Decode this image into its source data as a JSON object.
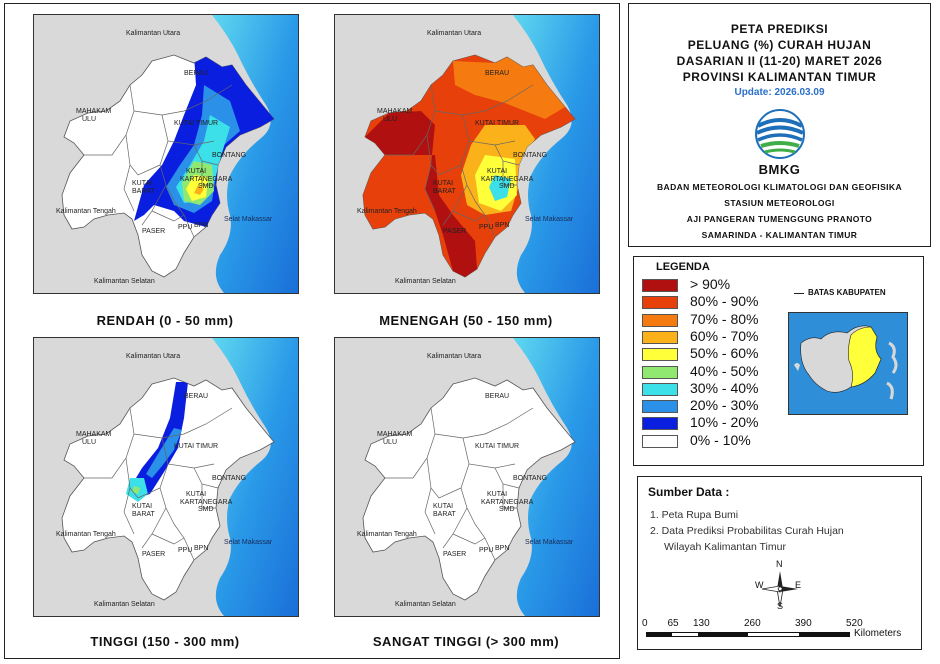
{
  "maps": [
    {
      "caption": "RENDAH (0 - 50 mm)"
    },
    {
      "caption": "MENENGAH (50 - 150 mm)"
    },
    {
      "caption": "TINGGI (150 - 300 mm)"
    },
    {
      "caption": "SANGAT TINGGI (> 300 mm)"
    }
  ],
  "map_labels": {
    "kalimantan_utara": "Kalimantan Utara",
    "berau": "BERAU",
    "mahakam_ulu": "MAHAKAM\nULU",
    "mahakam": "MAHAKAM",
    "ulu": "ULU",
    "kutai_timur": "KUTAI TIMUR",
    "bontang": "BONTANG",
    "kutai": "KUTAI",
    "kartanegara": "KARTANEGARA",
    "barat": "BARAT",
    "smd": "SMD",
    "kalimantan_tengah": "Kalimantan Tengah",
    "selat_makassar": "Selat Makassar",
    "paser": "PASER",
    "ppu": "PPU",
    "bpn": "BPN",
    "kalimantan_selatan": "Kalimantan Selatan"
  },
  "title": {
    "line1": "PETA PREDIKSI",
    "line2": "PELUANG (%) CURAH HUJAN",
    "line3": "DASARIAN II (11-20) MARET 2026",
    "line4": "PROVINSI KALIMANTAN TIMUR",
    "update": "Update: 2026.03.09"
  },
  "logo": {
    "text": "BMKG"
  },
  "org": {
    "line1": "BADAN METEOROLOGI KLIMATOLOGI DAN GEOFISIKA",
    "line2": "STASIUN METEOROLOGI",
    "line3": "AJI PANGERAN TUMENGGUNG PRANOTO",
    "line4": "SAMARINDA - KALIMANTAN TIMUR"
  },
  "legend": {
    "title": "LEGENDA",
    "items": [
      {
        "label": "> 90%",
        "color": "#b01010"
      },
      {
        "label": "80% - 90%",
        "color": "#e8400a"
      },
      {
        "label": "70% - 80%",
        "color": "#f57a10"
      },
      {
        "label": "60% - 70%",
        "color": "#fbb21a"
      },
      {
        "label": "50% - 60%",
        "color": "#ffff3a"
      },
      {
        "label": "40% - 50%",
        "color": "#90e870"
      },
      {
        "label": "30% - 40%",
        "color": "#3ce0e8"
      },
      {
        "label": "20% - 30%",
        "color": "#2a90e8"
      },
      {
        "label": "10% - 20%",
        "color": "#0a1ee0"
      },
      {
        "label": "0% - 10%",
        "color": "#ffffff"
      }
    ],
    "batas_label": "BATAS KABUPATEN"
  },
  "source": {
    "title": "Sumber Data :",
    "item1": "1. Peta Rupa Bumi",
    "item2": "2. Data Prediksi Probabilitas Curah Hujan",
    "item2b": "Wilayah Kalimantan Timur"
  },
  "compass": {
    "n": "N",
    "s": "S",
    "e": "E",
    "w": "W"
  },
  "scale": {
    "ticks": [
      "0",
      "65",
      "130",
      "260",
      "390",
      "520"
    ],
    "unit": "Kilometers"
  }
}
